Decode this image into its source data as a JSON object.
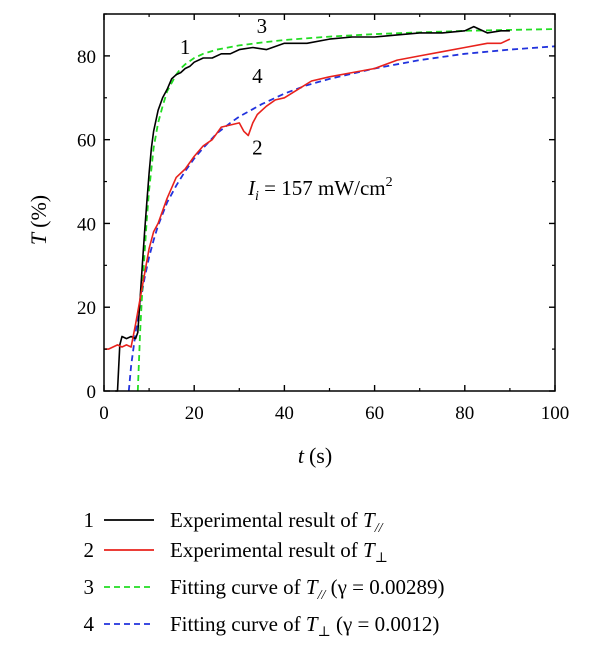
{
  "chart_data": {
    "type": "line",
    "title": "",
    "xlabel": "t",
    "xlabel_unit": "(s)",
    "ylabel": "T",
    "ylabel_unit": "(%)",
    "xlim": [
      0,
      100
    ],
    "ylim": [
      0,
      90
    ],
    "xticks": [
      0,
      20,
      40,
      60,
      80,
      100
    ],
    "yticks": [
      0,
      20,
      40,
      60,
      80
    ],
    "grid": false,
    "legend_position": "bottom",
    "annotation": {
      "symbol": "I",
      "subscript": "i",
      "text": " = 157 mW/cm",
      "superscript": "2"
    },
    "series": [
      {
        "id": "1",
        "name_prefix": "Experimental result of ",
        "name_symbol": "T",
        "name_sub": "//",
        "name_suffix": "",
        "color": "#000000",
        "style": "solid",
        "x": [
          2.5,
          3,
          3.5,
          4,
          5,
          6,
          7,
          7.5,
          8,
          8.5,
          9,
          9.5,
          10,
          10.5,
          11,
          12,
          13,
          14,
          15,
          16,
          17,
          18,
          19,
          20,
          22,
          24,
          26,
          28,
          30,
          33,
          36,
          40,
          45,
          50,
          55,
          60,
          65,
          70,
          75,
          80,
          82,
          85,
          88,
          90
        ],
        "y": [
          0,
          0,
          11,
          13,
          12.5,
          13,
          12.5,
          14,
          22,
          30,
          38,
          45,
          52,
          58,
          62,
          67,
          70,
          72,
          74.5,
          75.5,
          76,
          77,
          77.5,
          78.5,
          79.5,
          79.5,
          80.5,
          80.5,
          81.5,
          82,
          81.5,
          83,
          83,
          84,
          84.5,
          84.5,
          85,
          85.5,
          85.5,
          86,
          87,
          85.5,
          86,
          86
        ]
      },
      {
        "id": "2",
        "name_prefix": "Experimental result of ",
        "name_symbol": "T",
        "name_sub": "⊥",
        "name_suffix": "",
        "color": "#e8221c",
        "style": "solid",
        "x": [
          0,
          1,
          2,
          3,
          4,
          5,
          6,
          7,
          8,
          9,
          10,
          11,
          12,
          14,
          16,
          18,
          20,
          22,
          24,
          26,
          28,
          30,
          31,
          32,
          33,
          34,
          36,
          38,
          40,
          43,
          46,
          50,
          55,
          60,
          65,
          70,
          75,
          80,
          85,
          88,
          90
        ],
        "y": [
          10,
          10,
          10.5,
          11,
          10.5,
          11,
          10.5,
          16,
          22,
          28,
          34,
          38,
          40,
          46,
          51,
          53,
          56,
          58.5,
          60,
          63,
          63.5,
          64,
          62,
          61,
          64,
          66,
          68,
          69.5,
          70,
          72,
          74,
          75,
          76,
          77,
          79,
          80,
          81,
          82,
          83,
          83,
          84
        ]
      },
      {
        "id": "3",
        "name_prefix": "Fitting curve of ",
        "name_symbol": "T",
        "name_sub": "//",
        "name_suffix": " (γ = 0.00289)",
        "color": "#22dd22",
        "style": "dashed",
        "x": [
          7.5,
          8,
          8.5,
          9,
          9.5,
          10,
          10.5,
          11,
          12,
          13,
          14,
          15,
          16,
          17,
          18,
          20,
          22,
          25,
          30,
          35,
          40,
          50,
          60,
          70,
          80,
          90,
          100
        ],
        "y": [
          0,
          14,
          24,
          33,
          41,
          48,
          53,
          58,
          64,
          68,
          71.5,
          73.5,
          75.5,
          77,
          78,
          79.5,
          80.5,
          81.5,
          82.5,
          83.2,
          83.8,
          84.6,
          85.2,
          85.6,
          86,
          86.2,
          86.4
        ]
      },
      {
        "id": "4",
        "name_prefix": "Fitting curve of ",
        "name_symbol": "T",
        "name_sub": "⊥",
        "name_suffix": " (γ = 0.0012)",
        "color": "#2233dd",
        "style": "dashed",
        "x": [
          5.5,
          6,
          7,
          8,
          9,
          10,
          11,
          12,
          14,
          16,
          18,
          20,
          22,
          25,
          28,
          30,
          35,
          40,
          45,
          50,
          60,
          70,
          80,
          90,
          100
        ],
        "y": [
          0,
          6,
          14,
          21,
          27,
          32,
          36,
          39.5,
          45,
          49,
          52.5,
          55.5,
          58,
          61.5,
          64,
          65.5,
          68.5,
          71,
          73,
          74.5,
          77,
          79,
          80.5,
          81.5,
          82.3
        ]
      }
    ],
    "curve_labels": [
      {
        "text": "1",
        "x": 18,
        "y": 80.5
      },
      {
        "text": "3",
        "x": 35,
        "y": 85.5
      },
      {
        "text": "4",
        "x": 34,
        "y": 73.5
      },
      {
        "text": "2",
        "x": 34,
        "y": 56.5
      }
    ]
  }
}
